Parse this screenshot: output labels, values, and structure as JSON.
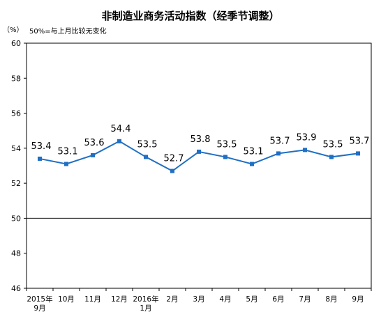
{
  "chart_data": {
    "type": "line",
    "title": "非制造业商务活动指数（经季节调整）",
    "unit_label": "（%）",
    "reference_note": "50%=与上月比较无变化",
    "x": [
      "2015年\n9月",
      "10月",
      "11月",
      "12月",
      "2016年\n1月",
      "2月",
      "3月",
      "4月",
      "5月",
      "6月",
      "7月",
      "8月",
      "9月"
    ],
    "values": [
      53.4,
      53.1,
      53.6,
      54.4,
      53.5,
      52.7,
      53.8,
      53.5,
      53.1,
      53.7,
      53.9,
      53.5,
      53.7
    ],
    "data_labels": [
      "53.4",
      "53.1",
      "53.6",
      "54.4",
      "53.5",
      "52.7",
      "53.8",
      "53.5",
      "53.1",
      "53.7",
      "53.9",
      "53.5",
      "53.7"
    ],
    "y_ticks": [
      "46",
      "48",
      "50",
      "52",
      "54",
      "56",
      "58",
      "60"
    ],
    "ylim": [
      46,
      60
    ],
    "reference_line": 50,
    "line_color": "#1f6fc4",
    "grid": false
  }
}
